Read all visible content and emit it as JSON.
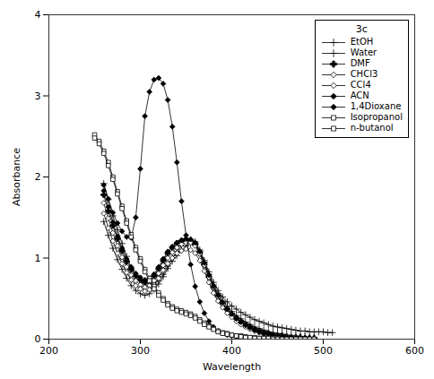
{
  "chart_data": {
    "type": "line",
    "xlabel": "Wavelength",
    "ylabel": "Absorbance",
    "legend_title": "3c",
    "legend": "upper right",
    "xlim": [
      200,
      600
    ],
    "ylim": [
      0,
      4
    ],
    "xticks": [
      200,
      300,
      400,
      500,
      600
    ],
    "yticks": [
      0,
      1,
      2,
      3,
      4
    ],
    "series": [
      {
        "name": "EtOH",
        "color": "#000000",
        "marker": "plus",
        "x": [
          260,
          265,
          270,
          275,
          280,
          285,
          290,
          295,
          300,
          305,
          310,
          315,
          320,
          325,
          330,
          335,
          340,
          345,
          350,
          355,
          360,
          365,
          370,
          375,
          380,
          385,
          390,
          395,
          400,
          405,
          410,
          415,
          420,
          425,
          430,
          435,
          440,
          445,
          450,
          455,
          460,
          465,
          470,
          475,
          480,
          485,
          490,
          495,
          500,
          505,
          510
        ],
        "values": [
          1.92,
          1.72,
          1.52,
          1.35,
          1.18,
          1.02,
          0.88,
          0.78,
          0.72,
          0.68,
          0.65,
          0.67,
          0.72,
          0.8,
          0.9,
          1.0,
          1.08,
          1.15,
          1.2,
          1.22,
          1.2,
          1.1,
          0.97,
          0.83,
          0.7,
          0.6,
          0.52,
          0.46,
          0.41,
          0.37,
          0.33,
          0.3,
          0.27,
          0.24,
          0.22,
          0.2,
          0.18,
          0.16,
          0.15,
          0.14,
          0.13,
          0.12,
          0.11,
          0.1,
          0.1,
          0.09,
          0.09,
          0.09,
          0.09,
          0.08,
          0.08
        ]
      },
      {
        "name": "Water",
        "color": "#000000",
        "marker": "plus",
        "x": [
          260,
          265,
          270,
          275,
          280,
          285,
          290,
          295,
          300,
          305,
          310,
          315,
          320,
          325,
          330,
          335,
          340,
          345,
          350,
          355,
          360,
          365,
          370,
          375,
          380,
          385,
          390,
          395,
          400,
          405,
          410,
          415,
          420,
          425,
          430,
          435,
          440,
          445,
          450,
          455,
          460,
          465,
          470,
          475,
          480,
          485,
          490
        ],
        "values": [
          1.45,
          1.28,
          1.12,
          0.98,
          0.86,
          0.75,
          0.66,
          0.6,
          0.56,
          0.54,
          0.56,
          0.61,
          0.68,
          0.77,
          0.87,
          0.96,
          1.03,
          1.1,
          1.15,
          1.18,
          1.17,
          1.08,
          0.95,
          0.8,
          0.67,
          0.56,
          0.47,
          0.4,
          0.34,
          0.29,
          0.25,
          0.21,
          0.18,
          0.15,
          0.13,
          0.11,
          0.09,
          0.08,
          0.07,
          0.06,
          0.05,
          0.04,
          0.04,
          0.03,
          0.03,
          0.02,
          0.02
        ]
      },
      {
        "name": "DMF",
        "color": "#000000",
        "marker": "plus_filled",
        "x": [
          260,
          265,
          270,
          275,
          280,
          285,
          290,
          295,
          300,
          305,
          310,
          315,
          320,
          325,
          330,
          335,
          340,
          345,
          350,
          355,
          360,
          365,
          370,
          375,
          380,
          385,
          390,
          395,
          400,
          405,
          410,
          415,
          420,
          425,
          430,
          435,
          440,
          445,
          450,
          455,
          460,
          465,
          470,
          475,
          480,
          485,
          490
        ],
        "values": [
          1.78,
          1.58,
          1.4,
          1.24,
          1.09,
          0.96,
          0.86,
          0.78,
          0.73,
          0.7,
          0.72,
          0.78,
          0.87,
          0.97,
          1.06,
          1.13,
          1.18,
          1.21,
          1.23,
          1.22,
          1.17,
          1.06,
          0.92,
          0.77,
          0.64,
          0.53,
          0.44,
          0.37,
          0.31,
          0.26,
          0.22,
          0.18,
          0.15,
          0.12,
          0.1,
          0.08,
          0.07,
          0.05,
          0.04,
          0.04,
          0.03,
          0.02,
          0.02,
          0.02,
          0.01,
          0.01,
          0.01
        ]
      },
      {
        "name": "CHCl3",
        "color": "#000000",
        "marker": "diamond_open",
        "x": [
          260,
          265,
          270,
          275,
          280,
          285,
          290,
          295,
          300,
          305,
          310,
          315,
          320,
          325,
          330,
          335,
          340,
          345,
          350,
          355,
          360,
          365,
          370,
          375,
          380,
          385,
          390,
          395,
          400,
          405,
          410,
          415,
          420,
          425,
          430,
          435,
          440,
          445,
          450,
          455,
          460,
          465,
          470,
          475,
          480,
          485,
          490
        ],
        "values": [
          1.68,
          1.49,
          1.31,
          1.15,
          1.01,
          0.89,
          0.79,
          0.72,
          0.67,
          0.64,
          0.66,
          0.72,
          0.81,
          0.91,
          1.0,
          1.07,
          1.13,
          1.17,
          1.19,
          1.19,
          1.15,
          1.05,
          0.91,
          0.76,
          0.63,
          0.52,
          0.43,
          0.36,
          0.3,
          0.25,
          0.21,
          0.17,
          0.14,
          0.11,
          0.09,
          0.07,
          0.06,
          0.05,
          0.04,
          0.03,
          0.03,
          0.02,
          0.02,
          0.01,
          0.01,
          0.01,
          0.01
        ]
      },
      {
        "name": "CCl4",
        "color": "#000000",
        "marker": "diamond_open",
        "x": [
          260,
          265,
          270,
          275,
          280,
          285,
          290,
          295,
          300,
          305,
          310,
          315,
          320,
          325,
          330,
          335,
          340,
          345,
          350,
          355,
          360,
          365,
          370,
          375,
          380,
          385,
          390,
          395,
          400,
          405,
          410,
          415,
          420,
          425,
          430,
          435,
          440,
          445,
          450,
          455,
          460,
          465,
          470,
          475,
          480,
          485,
          490
        ],
        "values": [
          1.55,
          1.37,
          1.21,
          1.06,
          0.93,
          0.82,
          0.73,
          0.66,
          0.62,
          0.59,
          0.61,
          0.67,
          0.75,
          0.85,
          0.93,
          1.0,
          1.06,
          1.09,
          1.11,
          1.1,
          1.06,
          0.97,
          0.84,
          0.7,
          0.57,
          0.47,
          0.39,
          0.32,
          0.27,
          0.22,
          0.18,
          0.15,
          0.12,
          0.1,
          0.08,
          0.06,
          0.05,
          0.04,
          0.03,
          0.03,
          0.02,
          0.02,
          0.01,
          0.01,
          0.01,
          0.01,
          0.0
        ]
      },
      {
        "name": "ACN",
        "color": "#000000",
        "marker": "diamond_filled",
        "x": [
          260,
          265,
          270,
          275,
          280,
          285,
          290,
          295,
          300,
          305,
          310,
          315,
          320,
          325,
          330,
          335,
          340,
          345,
          350,
          355,
          360,
          365,
          370,
          375,
          380,
          385,
          390,
          395,
          400,
          405,
          410,
          415,
          420,
          425,
          430,
          435,
          440,
          445,
          450,
          455,
          460,
          465,
          470,
          475,
          480,
          485,
          490
        ],
        "values": [
          1.83,
          1.63,
          1.44,
          1.27,
          1.12,
          0.99,
          0.89,
          0.81,
          0.76,
          0.73,
          0.75,
          0.8,
          0.89,
          0.99,
          1.08,
          1.14,
          1.19,
          1.22,
          1.24,
          1.23,
          1.19,
          1.08,
          0.94,
          0.79,
          0.65,
          0.54,
          0.45,
          0.37,
          0.31,
          0.25,
          0.21,
          0.17,
          0.14,
          0.11,
          0.09,
          0.07,
          0.06,
          0.05,
          0.04,
          0.03,
          0.02,
          0.02,
          0.01,
          0.01,
          0.01,
          0.01,
          0.0
        ]
      },
      {
        "name": "1,4Dioxane",
        "color": "#000000",
        "marker": "diamond_filled",
        "x": [
          260,
          265,
          270,
          275,
          280,
          285,
          290,
          295,
          300,
          305,
          310,
          315,
          320,
          325,
          330,
          335,
          340,
          345,
          350,
          355,
          360,
          365,
          370,
          375,
          380,
          385,
          390,
          395,
          400,
          405,
          410,
          415,
          420,
          425,
          430
        ],
        "values": [
          1.9,
          1.73,
          1.56,
          1.43,
          1.33,
          1.26,
          1.25,
          1.5,
          2.1,
          2.75,
          3.05,
          3.2,
          3.22,
          3.15,
          2.95,
          2.62,
          2.18,
          1.7,
          1.28,
          0.92,
          0.65,
          0.46,
          0.32,
          0.22,
          0.15,
          0.1,
          0.07,
          0.05,
          0.04,
          0.03,
          0.02,
          0.01,
          0.01,
          0.01,
          0.0
        ]
      },
      {
        "name": "Isopropanol",
        "color": "#000000",
        "marker": "square_open",
        "x": [
          250,
          255,
          260,
          265,
          270,
          275,
          280,
          285,
          290,
          295,
          300,
          305,
          310,
          315,
          320,
          325,
          330,
          335,
          340,
          345,
          350,
          355,
          360,
          365,
          370,
          375,
          380,
          385,
          390,
          395,
          400,
          405,
          410,
          415,
          420,
          425,
          430,
          435,
          440,
          445,
          450,
          455,
          460,
          465,
          470,
          475,
          480,
          485,
          490
        ],
        "values": [
          2.52,
          2.44,
          2.32,
          2.18,
          2.0,
          1.82,
          1.64,
          1.46,
          1.29,
          1.13,
          0.99,
          0.86,
          0.75,
          0.65,
          0.57,
          0.5,
          0.44,
          0.4,
          0.37,
          0.35,
          0.33,
          0.31,
          0.28,
          0.24,
          0.2,
          0.16,
          0.13,
          0.1,
          0.08,
          0.07,
          0.05,
          0.04,
          0.04,
          0.03,
          0.02,
          0.02,
          0.01,
          0.01,
          0.01,
          0.01,
          0.01,
          0.0,
          0.0,
          0.0,
          0.0,
          0.0,
          0.0,
          0.0,
          0.0
        ]
      },
      {
        "name": "n-butanol",
        "color": "#000000",
        "marker": "square_open",
        "x": [
          250,
          255,
          260,
          265,
          270,
          275,
          280,
          285,
          290,
          295,
          300,
          305,
          310,
          315,
          320,
          325,
          330,
          335,
          340,
          345,
          350,
          355,
          360,
          365,
          370,
          375,
          380,
          385,
          390,
          395,
          400,
          405,
          410,
          415,
          420,
          425,
          430,
          435,
          440,
          445,
          450,
          455,
          460,
          465,
          470,
          475,
          480,
          485,
          490
        ],
        "values": [
          2.48,
          2.41,
          2.29,
          2.14,
          1.97,
          1.79,
          1.61,
          1.43,
          1.26,
          1.1,
          0.96,
          0.83,
          0.72,
          0.62,
          0.54,
          0.48,
          0.42,
          0.38,
          0.35,
          0.33,
          0.31,
          0.29,
          0.26,
          0.22,
          0.18,
          0.15,
          0.12,
          0.09,
          0.07,
          0.06,
          0.05,
          0.04,
          0.03,
          0.02,
          0.02,
          0.01,
          0.01,
          0.01,
          0.01,
          0.0,
          0.0,
          0.0,
          0.0,
          0.0,
          0.0,
          0.0,
          0.0,
          0.0,
          0.0
        ]
      }
    ]
  }
}
